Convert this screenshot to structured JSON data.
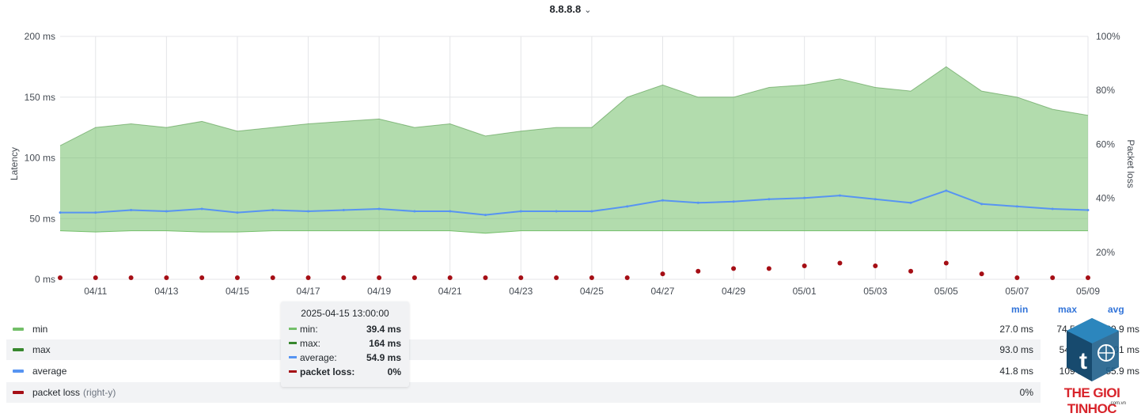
{
  "panel": {
    "title": "8.8.8.8",
    "chevron": "⌄"
  },
  "axes": {
    "y_left_label": "Latency",
    "y_right_label": "Packet loss",
    "y_left_ticks": [
      "0 ms",
      "50 ms",
      "100 ms",
      "150 ms",
      "200 ms"
    ],
    "y_right_ticks": [
      "20%",
      "40%",
      "60%",
      "80%",
      "100%"
    ],
    "x_ticks": [
      "04/11",
      "04/13",
      "04/15",
      "04/17",
      "04/19",
      "04/21",
      "04/23",
      "04/25",
      "04/27",
      "04/29",
      "05/01",
      "05/03",
      "05/05",
      "05/07",
      "05/09"
    ]
  },
  "legend": {
    "headers": {
      "min": "min",
      "max": "max",
      "avg": "avg"
    },
    "rows": [
      {
        "name": "min",
        "axis_note": "",
        "color": "#73bf69",
        "min": "27.0 ms",
        "max": "74.5 ms",
        "avg": "39.9 ms"
      },
      {
        "name": "max",
        "axis_note": "",
        "color": "#37872d",
        "min": "93.0 ms",
        "max": "545 ms",
        "avg": "101 ms"
      },
      {
        "name": "average",
        "axis_note": "",
        "color": "#5794f2",
        "min": "41.8 ms",
        "max": "109 ms",
        "avg": "55.9 ms"
      },
      {
        "name": "packet loss",
        "axis_note": "(right-y)",
        "color": "#a50e15",
        "min": "0%",
        "max": "",
        "avg": ""
      }
    ]
  },
  "tooltip": {
    "time": "2025-04-15 13:00:00",
    "rows": [
      {
        "label": "min:",
        "value": "39.4 ms",
        "color": "#73bf69"
      },
      {
        "label": "max:",
        "value": "164 ms",
        "color": "#37872d"
      },
      {
        "label": "average:",
        "value": "54.9 ms",
        "color": "#5794f2"
      },
      {
        "label": "packet loss:",
        "value": "0%",
        "color": "#a50e15"
      }
    ]
  },
  "watermark": {
    "brand": "THE GIOI TINHOC",
    "sub": ".com.vn"
  },
  "chart_data": {
    "type": "area",
    "x_range": [
      "2025-04-10",
      "2025-05-09"
    ],
    "grid": true,
    "legend_placement": "bottom",
    "y_left": {
      "label": "Latency",
      "unit": "ms",
      "ylim": [
        0,
        200
      ]
    },
    "y_right": {
      "label": "Packet loss",
      "unit": "%",
      "ylim": [
        10,
        100
      ]
    },
    "dates": [
      "04/10",
      "04/11",
      "04/12",
      "04/13",
      "04/14",
      "04/15",
      "04/16",
      "04/17",
      "04/18",
      "04/19",
      "04/20",
      "04/21",
      "04/22",
      "04/23",
      "04/24",
      "04/25",
      "04/26",
      "04/27",
      "04/28",
      "04/29",
      "04/30",
      "05/01",
      "05/02",
      "05/03",
      "05/04",
      "05/05",
      "05/06",
      "05/07",
      "05/08",
      "05/09"
    ],
    "series": [
      {
        "name": "min",
        "color": "#73bf69",
        "values": [
          40,
          39,
          40,
          40,
          39,
          39,
          40,
          40,
          40,
          40,
          40,
          40,
          38,
          40,
          40,
          40,
          40,
          40,
          40,
          40,
          40,
          40,
          40,
          40,
          40,
          40,
          40,
          40,
          40,
          40
        ]
      },
      {
        "name": "max",
        "color": "#37872d",
        "values": [
          110,
          125,
          128,
          125,
          130,
          122,
          125,
          128,
          130,
          132,
          125,
          128,
          118,
          122,
          125,
          125,
          150,
          160,
          150,
          150,
          158,
          160,
          165,
          158,
          155,
          175,
          155,
          150,
          140,
          135
        ]
      },
      {
        "name": "average",
        "color": "#5794f2",
        "values": [
          55,
          55,
          57,
          56,
          58,
          55,
          57,
          56,
          57,
          58,
          56,
          56,
          53,
          56,
          56,
          56,
          60,
          65,
          63,
          64,
          66,
          67,
          69,
          66,
          63,
          73,
          62,
          60,
          58,
          57
        ]
      },
      {
        "name": "packet loss",
        "color": "#a50e15",
        "axis": "right",
        "values": [
          0,
          0,
          0,
          0,
          0,
          0,
          0,
          0,
          0,
          0,
          0,
          0,
          0,
          0,
          0,
          0,
          0,
          2,
          3,
          4,
          4,
          5,
          6,
          5,
          3,
          6,
          2,
          0,
          0,
          0
        ]
      }
    ]
  }
}
